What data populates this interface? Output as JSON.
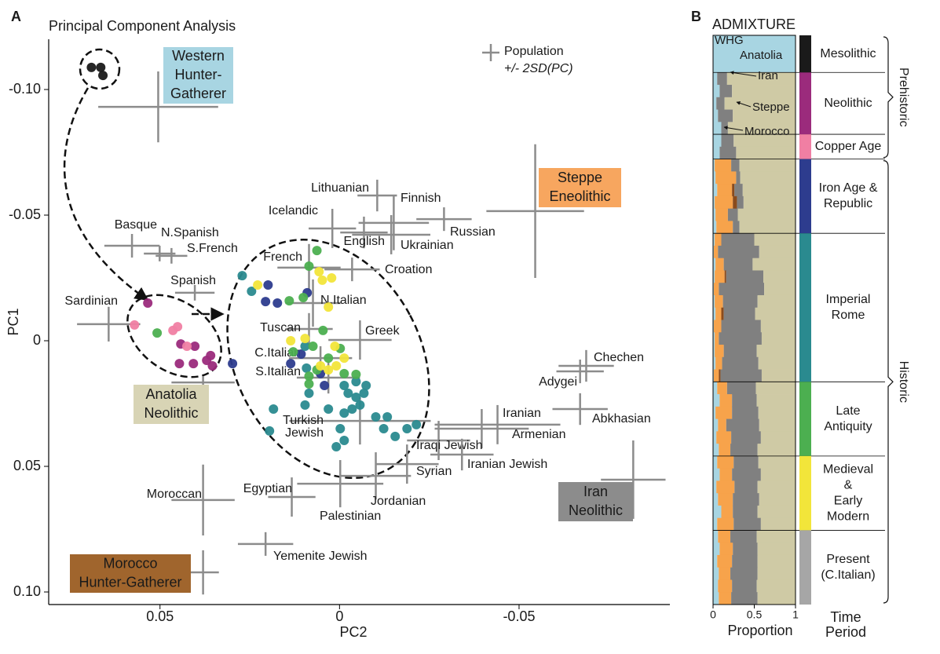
{
  "chart_data": [
    {
      "type": "scatter",
      "panel": "A",
      "title": "Principal Component Analysis",
      "xlabel": "PC2",
      "ylabel": "PC1",
      "xlim": [
        0.081,
        -0.092
      ],
      "ylim": [
        0.105,
        -0.12
      ],
      "xticks": [
        0.05,
        0,
        -0.05
      ],
      "yticks": [
        {
          "value": -0.1,
          "label": "-0.10"
        },
        -0.05,
        0,
        0.05,
        {
          "value": 0.1,
          "label": "0.10"
        }
      ],
      "legend_note": {
        "name": "Population",
        "detail": "+/- 2SD(PC)"
      },
      "source_populations": [
        {
          "name": [
            "Western",
            "Hunter-",
            "Gatherer"
          ],
          "color": "#a8d5e2",
          "pc2": 0.0505,
          "pc1": -0.0931,
          "sd2": 0.0167,
          "sd1": 0.0141
        },
        {
          "name": [
            "Steppe",
            "Eneolithic"
          ],
          "color": "#f7a65f",
          "pc2": -0.0545,
          "pc1": -0.0516,
          "sd2": 0.0136,
          "sd1": 0.0266
        },
        {
          "name": [
            "Iran",
            "Neolithic"
          ],
          "color": "#8c8c8c",
          "pc2": -0.0818,
          "pc1": 0.0553,
          "sd2": 0.009,
          "sd1": 0.0156
        },
        {
          "name": [
            "Anatolia",
            "Neolithic"
          ],
          "color": "#d8d4b5",
          "pc2": 0.038,
          "pc1": 0.0166,
          "sd2": 0.0088,
          "sd1": 0.0025
        },
        {
          "name": [
            "Morocco",
            "Hunter-Gatherer"
          ],
          "color": "#a0652d",
          "pc2": 0.038,
          "pc1": 0.0922,
          "sd2": 0.0044,
          "sd1": 0.0088
        }
      ],
      "populations": [
        {
          "name": "Lithuanian",
          "pc2": -0.0105,
          "pc1": -0.0578,
          "sd2": 0.0055,
          "sd1": 0.0063
        },
        {
          "name": "Finnish",
          "pc2": -0.0151,
          "pc1": -0.0469,
          "sd2": 0.0098,
          "sd1": 0.0109
        },
        {
          "name": "Icelandic",
          "pc2": 0.002,
          "pc1": -0.0447,
          "sd2": 0.0066,
          "sd1": 0.0078
        },
        {
          "name": "Russian",
          "pc2": -0.0291,
          "pc1": -0.0484,
          "sd2": 0.0077,
          "sd1": 0.0047
        },
        {
          "name": "English",
          "pc2": -0.0068,
          "pc1": -0.0431,
          "sd2": 0.0066,
          "sd1": 0.0063
        },
        {
          "name": "Ukrainian",
          "pc2": -0.0144,
          "pc1": -0.0422,
          "sd2": 0.0109,
          "sd1": 0.0078
        },
        {
          "name": "Basque",
          "pc2": 0.0578,
          "pc1": -0.0378,
          "sd2": 0.0077,
          "sd1": 0.0047
        },
        {
          "name": "N.Spanish",
          "pc2": 0.0501,
          "pc1": -0.0347,
          "sd2": 0.0044,
          "sd1": 0.0031
        },
        {
          "name": "S.French",
          "pc2": 0.0468,
          "pc1": -0.0338,
          "sd2": 0.0044,
          "sd1": 0.0031
        },
        {
          "name": "French",
          "pc2": 0.0085,
          "pc1": -0.0291,
          "sd2": 0.0088,
          "sd1": 0.0094
        },
        {
          "name": "Croation",
          "pc2": -0.0035,
          "pc1": -0.0284,
          "sd2": 0.0077,
          "sd1": 0.0047
        },
        {
          "name": "Spanish",
          "pc2": 0.0403,
          "pc1": -0.0191,
          "sd2": 0.0055,
          "sd1": 0.0031
        },
        {
          "name": "N.Italian",
          "pc2": 0.0074,
          "pc1": -0.015,
          "sd2": 0.0077,
          "sd1": 0.0094
        },
        {
          "name": "Sardinian",
          "pc2": 0.0643,
          "pc1": -0.0066,
          "sd2": 0.0088,
          "sd1": 0.0069
        },
        {
          "name": "Tuscan",
          "pc2": 0.0085,
          "pc1": -0.0047,
          "sd2": 0.0066,
          "sd1": 0.0063
        },
        {
          "name": "Greek",
          "pc2": -0.0057,
          "pc1": -0.0003,
          "sd2": 0.0088,
          "sd1": 0.0078
        },
        {
          "name": "C.Italian",
          "pc2": 0.0053,
          "pc1": 0.0069,
          "sd2": 0.0088,
          "sd1": 0.0047
        },
        {
          "name": "S.Italian",
          "pc2": 0.0031,
          "pc1": 0.0147,
          "sd2": 0.0088,
          "sd1": 0.0063
        },
        {
          "name": "Chechen",
          "pc2": -0.0687,
          "pc1": 0.01,
          "sd2": 0.0077,
          "sd1": 0.0063
        },
        {
          "name": "Adygei",
          "pc2": -0.067,
          "pc1": 0.0122,
          "sd2": 0.0066,
          "sd1": 0.0047
        },
        {
          "name": "Abkhasian",
          "pc2": -0.067,
          "pc1": 0.0272,
          "sd2": 0.0077,
          "sd1": 0.0063
        },
        {
          "name": "Iranian",
          "pc2": -0.044,
          "pc1": 0.0334,
          "sd2": 0.0175,
          "sd1": 0.0078
        },
        {
          "name": "Armenian",
          "pc2": -0.0396,
          "pc1": 0.035,
          "sd2": 0.0131,
          "sd1": 0.0078
        },
        {
          "name": [
            "Turkish",
            "Jewish"
          ],
          "pc2": -0.0057,
          "pc1": 0.0319,
          "sd2": 0.0197,
          "sd1": 0.0094
        },
        {
          "name": "Iraqi Jewish",
          "pc2": -0.0276,
          "pc1": 0.0397,
          "sd2": 0.0088,
          "sd1": 0.0078
        },
        {
          "name": "Iranian Jewish",
          "pc2": -0.0341,
          "pc1": 0.0453,
          "sd2": 0.0088,
          "sd1": 0.0063
        },
        {
          "name": "Syrian",
          "pc2": -0.0188,
          "pc1": 0.0491,
          "sd2": 0.0088,
          "sd1": 0.0078
        },
        {
          "name": "Jordanian",
          "pc2": -0.0101,
          "pc1": 0.0538,
          "sd2": 0.0098,
          "sd1": 0.0094
        },
        {
          "name": "Palestinian",
          "pc2": -0.0002,
          "pc1": 0.0569,
          "sd2": 0.012,
          "sd1": 0.0094
        },
        {
          "name": "Egyptian",
          "pc2": 0.0133,
          "pc1": 0.0622,
          "sd2": 0.0066,
          "sd1": 0.0078
        },
        {
          "name": "Moroccan",
          "pc2": 0.038,
          "pc1": 0.0634,
          "sd2": 0.0088,
          "sd1": 0.0141
        },
        {
          "name": "Yemenite Jewish",
          "pc2": 0.0206,
          "pc1": 0.0809,
          "sd2": 0.0077,
          "sd1": 0.0047
        }
      ],
      "series": [
        {
          "name": "Mesolithic",
          "color": "#1a1a1a",
          "x": [
            0.0691,
            0.0665,
            0.0659
          ],
          "values": [
            -0.1088,
            -0.1088,
            -0.1056
          ]
        },
        {
          "name": "Neolithic",
          "color": "#9b2b7c",
          "x": [
            0.0534,
            0.0442,
            0.0446,
            0.0407,
            0.037,
            0.0354,
            0.0359,
            0.0403
          ],
          "values": [
            -0.015,
            0.0013,
            0.0091,
            0.0091,
            0.0078,
            0.01,
            0.0059,
            0.0022
          ]
        },
        {
          "name": "Copper Age",
          "color": "#f07fa3",
          "x": [
            0.0571,
            0.0464,
            0.0451,
            0.0425
          ],
          "values": [
            -0.0063,
            -0.0041,
            -0.0056,
            0.0022
          ]
        },
        {
          "name": [
            "Iron Age &",
            "Republic"
          ],
          "color": "#2d3c8e",
          "x": [
            0.0199,
            0.0206,
            0.0173,
            0.0298,
            0.0136,
            0.0053,
            0.0042,
            0.0107,
            0.009
          ],
          "values": [
            -0.0222,
            -0.0156,
            -0.015,
            0.0091,
            0.0091,
            0.0131,
            0.0178,
            0.0053,
            -0.0191
          ]
        },
        {
          "name": [
            "Imperial",
            "Rome"
          ],
          "color": "#2a8a8f",
          "x": [
            0.0271,
            0.0245,
            0.0096,
            0.0092,
            0.0085,
            0.0096,
            -0.0013,
            -0.0024,
            -0.0046,
            -0.0057,
            -0.0068,
            -0.0035,
            -0.0013,
            -0.0101,
            -0.0133,
            -0.0123,
            -0.0188,
            -0.0155,
            -0.0214,
            -0.0002,
            -0.0013,
            0.0009,
            0.0184,
            0.0195,
            -0.0046,
            0.0031,
            -0.0074
          ],
          "values": [
            -0.0259,
            -0.0197,
            0.0022,
            0.0109,
            0.0209,
            0.0256,
            0.0178,
            0.0209,
            0.0225,
            0.0256,
            0.0209,
            0.0272,
            0.0288,
            0.0303,
            0.0303,
            0.035,
            0.035,
            0.0381,
            0.0334,
            0.035,
            0.0397,
            0.0422,
            0.0272,
            0.0359,
            0.0163,
            0.0272,
            0.0178
          ]
        },
        {
          "name": [
            "Late",
            "Antiquity"
          ],
          "color": "#4caf50",
          "x": [
            0.0508,
            0.0063,
            0.0085,
            0.014,
            0.0101,
            -0.0002,
            0.0074,
            0.0031,
            -0.0046,
            -0.0013,
            0.0085,
            0.0085,
            0.0129,
            0.0046,
            0.0063
          ],
          "values": [
            -0.0031,
            -0.0359,
            -0.0297,
            -0.0159,
            -0.0172,
            0.0031,
            0.0022,
            0.0069,
            0.0134,
            0.0131,
            0.0141,
            0.0172,
            0.0044,
            -0.0041,
            0.0116
          ]
        },
        {
          "name": [
            "Medieval",
            "&",
            "Early",
            "Modern"
          ],
          "color": "#f2e53a",
          "x": [
            0.0228,
            0.0057,
            0.0048,
            0.0022,
            0.0136,
            0.0096,
            0.0013,
            0.0009,
            0.0031,
            0.0053,
            -0.0013,
            0.0031
          ],
          "values": [
            -0.0222,
            -0.0275,
            -0.0241,
            -0.025,
            0,
            -0.0009,
            0.0022,
            0.01,
            0.0116,
            0.01,
            0.0069,
            -0.0134
          ]
        },
        {
          "name": [
            "Present",
            "(C.Italian)"
          ],
          "color": "#a6a6a6",
          "x": [],
          "values": []
        }
      ]
    },
    {
      "type": "admixture",
      "panel": "B",
      "title": "ADMIXTURE",
      "xlabel": "Proportion",
      "legend_title": [
        "Time",
        "Period"
      ],
      "xlim": [
        0,
        1
      ],
      "xticks": [
        0,
        0.5,
        1
      ],
      "eras": [
        {
          "name": "Prehistoric"
        },
        {
          "name": "Historic"
        }
      ],
      "components": [
        {
          "name": "WHG",
          "color": "#a8d5e2"
        },
        {
          "name": "Steppe",
          "color": "#f7a34b"
        },
        {
          "name": "Morocco",
          "color": "#8a4b1c"
        },
        {
          "name": "Iran",
          "color": "#808080"
        },
        {
          "name": "Anatolia",
          "color": "#cfcaa5"
        }
      ],
      "groups": [
        [
          [
            1,
            0,
            0,
            0,
            0
          ],
          [
            1,
            0,
            0,
            0,
            0
          ],
          [
            1,
            0,
            0,
            0,
            0
          ]
        ],
        [
          [
            0.05,
            0,
            0,
            0.12,
            0.83
          ],
          [
            0.08,
            0,
            0,
            0.15,
            0.77
          ],
          [
            0.04,
            0,
            0,
            0.1,
            0.86
          ],
          [
            0.06,
            0,
            0,
            0.18,
            0.76
          ],
          [
            0.1,
            0,
            0,
            0.08,
            0.82
          ]
        ],
        [
          [
            0.1,
            0,
            0,
            0.15,
            0.75
          ],
          [
            0.08,
            0,
            0,
            0.2,
            0.72
          ]
        ],
        [
          [
            0.02,
            0.2,
            0,
            0.1,
            0.68
          ],
          [
            0.03,
            0.25,
            0,
            0.05,
            0.67
          ],
          [
            0.05,
            0.18,
            0.03,
            0.1,
            0.64
          ],
          [
            0.02,
            0.22,
            0.05,
            0.08,
            0.63
          ],
          [
            0.03,
            0.15,
            0,
            0.12,
            0.7
          ],
          [
            0.04,
            0.2,
            0,
            0.08,
            0.68
          ]
        ],
        [
          [
            0.02,
            0.08,
            0,
            0.4,
            0.5
          ],
          [
            0.01,
            0.05,
            0,
            0.5,
            0.44
          ],
          [
            0.03,
            0.1,
            0,
            0.35,
            0.52
          ],
          [
            0.02,
            0.12,
            0.02,
            0.45,
            0.39
          ],
          [
            0.01,
            0.06,
            0,
            0.55,
            0.38
          ],
          [
            0.02,
            0.1,
            0,
            0.42,
            0.46
          ],
          [
            0.03,
            0.07,
            0.03,
            0.38,
            0.49
          ],
          [
            0.01,
            0.09,
            0,
            0.48,
            0.42
          ],
          [
            0.02,
            0.05,
            0,
            0.52,
            0.41
          ],
          [
            0.02,
            0.11,
            0,
            0.4,
            0.47
          ],
          [
            0.03,
            0.08,
            0,
            0.44,
            0.45
          ],
          [
            0.01,
            0.06,
            0.02,
            0.5,
            0.41
          ]
        ],
        [
          [
            0.05,
            0.12,
            0,
            0.35,
            0.48
          ],
          [
            0.08,
            0.15,
            0,
            0.3,
            0.47
          ],
          [
            0.03,
            0.2,
            0,
            0.32,
            0.45
          ],
          [
            0.06,
            0.1,
            0,
            0.4,
            0.44
          ],
          [
            0.04,
            0.18,
            0,
            0.36,
            0.42
          ],
          [
            0.07,
            0.14,
            0,
            0.33,
            0.46
          ]
        ],
        [
          [
            0.05,
            0.2,
            0,
            0.3,
            0.45
          ],
          [
            0.08,
            0.15,
            0,
            0.35,
            0.42
          ],
          [
            0.04,
            0.22,
            0,
            0.28,
            0.46
          ],
          [
            0.06,
            0.18,
            0,
            0.32,
            0.44
          ],
          [
            0.1,
            0.14,
            0,
            0.3,
            0.46
          ],
          [
            0.05,
            0.2,
            0,
            0.33,
            0.42
          ]
        ],
        [
          [
            0.06,
            0.15,
            0,
            0.32,
            0.47
          ],
          [
            0.08,
            0.16,
            0,
            0.3,
            0.46
          ],
          [
            0.05,
            0.18,
            0,
            0.31,
            0.46
          ],
          [
            0.07,
            0.14,
            0,
            0.33,
            0.46
          ],
          [
            0.06,
            0.17,
            0,
            0.3,
            0.47
          ],
          [
            0.07,
            0.15,
            0,
            0.32,
            0.46
          ]
        ]
      ]
    }
  ]
}
